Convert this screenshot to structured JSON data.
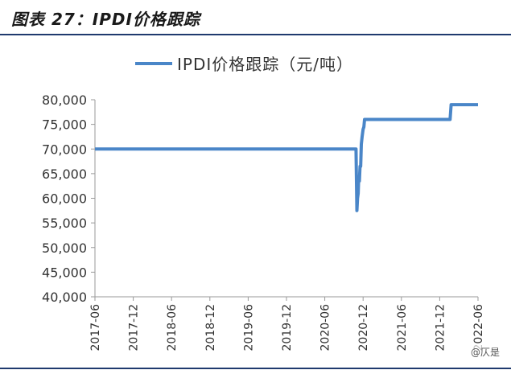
{
  "figure": {
    "title": "图表 27：IPDI价格跟踪",
    "watermark": "@仄是"
  },
  "colors": {
    "line": "#4a86c8",
    "axis": "#9a9a9a",
    "text": "#333333",
    "rule": "#1f3a6e"
  },
  "chart_data": {
    "type": "line",
    "title": "",
    "xlabel": "",
    "ylabel": "",
    "legend": {
      "position": "top-center",
      "entries": [
        "IPDI价格跟踪（元/吨）"
      ]
    },
    "grid": false,
    "xlim": [
      "2017-06",
      "2022-06"
    ],
    "ylim": [
      40000,
      80000
    ],
    "x_ticks": [
      "2017-06",
      "2017-12",
      "2018-06",
      "2018-12",
      "2019-06",
      "2019-12",
      "2020-06",
      "2020-12",
      "2021-06",
      "2021-12",
      "2022-06"
    ],
    "y_ticks": [
      "40,000",
      "45,000",
      "50,000",
      "55,000",
      "60,000",
      "65,000",
      "70,000",
      "75,000",
      "80,000"
    ],
    "series": [
      {
        "name": "IPDI价格跟踪（元/吨）",
        "points": [
          {
            "x": "2017-06-01",
            "y": 70000
          },
          {
            "x": "2020-10-28",
            "y": 70000
          },
          {
            "x": "2020-11-02",
            "y": 57500
          },
          {
            "x": "2020-11-05",
            "y": 60000
          },
          {
            "x": "2020-11-08",
            "y": 61000
          },
          {
            "x": "2020-11-10",
            "y": 63500
          },
          {
            "x": "2020-11-14",
            "y": 63500
          },
          {
            "x": "2020-11-17",
            "y": 66500
          },
          {
            "x": "2020-11-20",
            "y": 66500
          },
          {
            "x": "2020-11-23",
            "y": 71000
          },
          {
            "x": "2020-11-27",
            "y": 72500
          },
          {
            "x": "2020-12-01",
            "y": 74000
          },
          {
            "x": "2020-12-05",
            "y": 74500
          },
          {
            "x": "2020-12-08",
            "y": 76000
          },
          {
            "x": "2022-01-20",
            "y": 76000
          },
          {
            "x": "2022-01-25",
            "y": 79000
          },
          {
            "x": "2022-06-01",
            "y": 79000
          }
        ]
      }
    ]
  }
}
